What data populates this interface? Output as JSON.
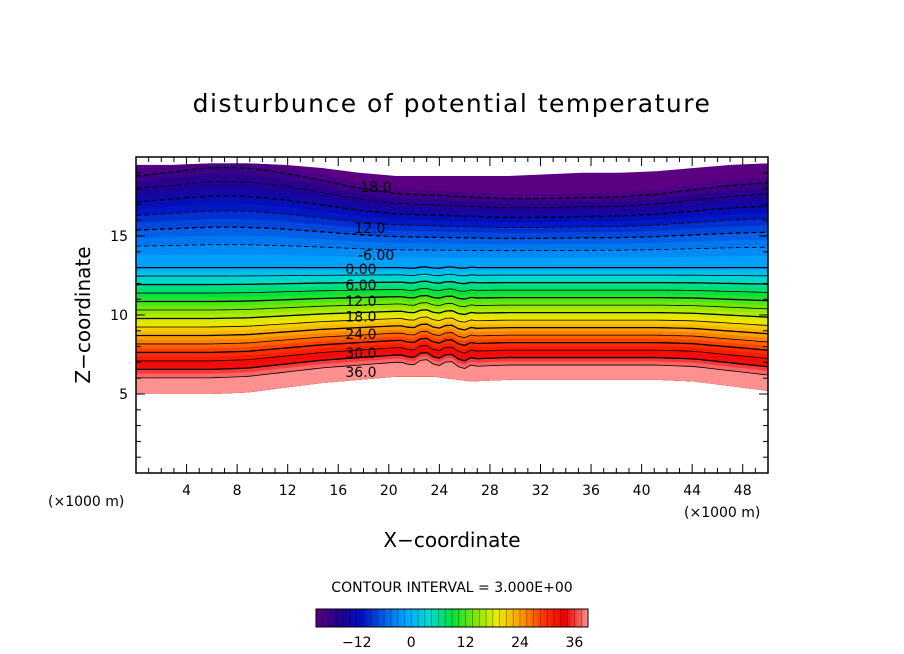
{
  "chart_data": {
    "type": "contour",
    "title": "disturbunce of potential temperature",
    "xlabel": "X−coordinate",
    "ylabel": "Z−coordinate",
    "x_unit_left": "(×1000 m)",
    "x_unit_right": "(×1000 m)",
    "xlim": [
      0,
      50
    ],
    "ylim": [
      0,
      20
    ],
    "x_ticks": [
      4,
      8,
      12,
      16,
      20,
      24,
      28,
      32,
      36,
      40,
      44,
      48
    ],
    "y_ticks": [
      5,
      10,
      15
    ],
    "contour_interval_text": "CONTOUR INTERVAL = 3.000E+00",
    "contour_interval": 3,
    "value_range": [
      -21,
      39
    ],
    "field_top_z": [
      19.5,
      19.5,
      19.6,
      19.6,
      19.5,
      19.3,
      19.0,
      18.8,
      18.8,
      18.8,
      18.8,
      18.9,
      19.0,
      19.0,
      19.1,
      19.3,
      19.5,
      19.6
    ],
    "field_bottom_z": [
      5.0,
      5.0,
      5.0,
      5.1,
      5.4,
      5.7,
      5.9,
      6.1,
      6.1,
      5.8,
      5.9,
      5.9,
      5.9,
      5.9,
      5.9,
      5.8,
      5.5,
      5.2
    ],
    "contour_labels": [
      {
        "text": "18.0",
        "x": 19,
        "z": 18.1
      },
      {
        "text": "12.0",
        "x": 18.5,
        "z": 15.5
      },
      {
        "text": "-6.00",
        "x": 19,
        "z": 13.8
      },
      {
        "text": "0.00",
        "x": 17.8,
        "z": 12.9
      },
      {
        "text": "6.00",
        "x": 17.8,
        "z": 11.9
      },
      {
        "text": "12.0",
        "x": 17.8,
        "z": 10.9
      },
      {
        "text": "18.0",
        "x": 17.8,
        "z": 9.9
      },
      {
        "text": "24.0",
        "x": 17.8,
        "z": 8.8
      },
      {
        "text": "30.0",
        "x": 17.8,
        "z": 7.6
      },
      {
        "text": "36.0",
        "x": 17.8,
        "z": 6.4
      }
    ],
    "colorbar": {
      "ticks": [
        -12,
        0,
        12,
        24,
        36
      ],
      "tick_labels": [
        "−12",
        "0",
        "12",
        "24",
        "36"
      ]
    }
  },
  "colors": {
    "scale": [
      "#5a0080",
      "#24008c",
      "#0010c0",
      "#0060e8",
      "#00a8ff",
      "#00dcd0",
      "#00e040",
      "#7ce800",
      "#ecec00",
      "#ffa000",
      "#ff3800",
      "#f00000",
      "#ff9090"
    ]
  }
}
